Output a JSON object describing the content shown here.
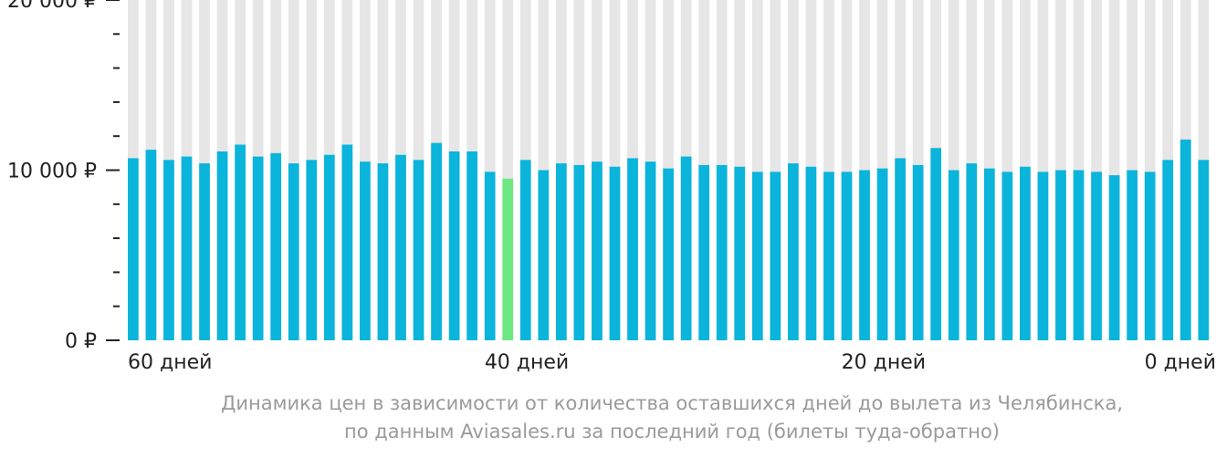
{
  "chart_data": {
    "type": "bar",
    "title": "",
    "ylim": [
      0,
      20000
    ],
    "y_tick_labels": [
      {
        "value": 0,
        "label": "0 ₽"
      },
      {
        "value": 10000,
        "label": "10 000 ₽"
      },
      {
        "value": 20000,
        "label": "20 000 ₽"
      }
    ],
    "y_minor_ticks": [
      2000,
      4000,
      6000,
      8000,
      12000,
      14000,
      16000,
      18000
    ],
    "x_tick_labels": [
      {
        "days": 60,
        "label": "60 дней"
      },
      {
        "days": 40,
        "label": "40 дней"
      },
      {
        "days": 20,
        "label": "20 дней"
      },
      {
        "days": 0,
        "label": "0 дней"
      }
    ],
    "x_days": [
      60,
      59,
      58,
      57,
      56,
      55,
      54,
      53,
      52,
      51,
      50,
      49,
      48,
      47,
      46,
      45,
      44,
      43,
      42,
      41,
      40,
      39,
      38,
      37,
      36,
      35,
      34,
      33,
      32,
      31,
      30,
      29,
      28,
      27,
      26,
      25,
      24,
      23,
      22,
      21,
      20,
      19,
      18,
      17,
      16,
      15,
      14,
      13,
      12,
      11,
      10,
      9,
      8,
      7,
      6,
      5,
      4,
      3,
      2,
      1,
      0
    ],
    "values": [
      10700,
      11200,
      10600,
      10800,
      10400,
      11100,
      11500,
      10800,
      11000,
      10400,
      10600,
      10900,
      11500,
      10500,
      10400,
      10900,
      10600,
      11600,
      11100,
      11100,
      9900,
      9500,
      10600,
      10000,
      10400,
      10300,
      10500,
      10200,
      10700,
      10500,
      10100,
      10800,
      10300,
      10300,
      10200,
      9900,
      9900,
      10400,
      10200,
      9900,
      9900,
      10000,
      10100,
      10700,
      10300,
      11300,
      10000,
      10400,
      10100,
      9900,
      10200,
      9900,
      10000,
      10000,
      9900,
      9700,
      10000,
      9900,
      10600,
      11800,
      10600
    ],
    "highlight_index": 21,
    "colors": {
      "bar": "#0ab4da",
      "highlight": "#6ee882",
      "background_column": "#e6e6e6",
      "axis_text": "#222222",
      "caption": "#9a9a9a"
    }
  },
  "caption": {
    "line1": "Динамика цен в зависимости от количества оставшихся дней до вылета из Челябинска,",
    "line2": "по данным Aviasales.ru за последний год (билеты туда-обратно)"
  }
}
